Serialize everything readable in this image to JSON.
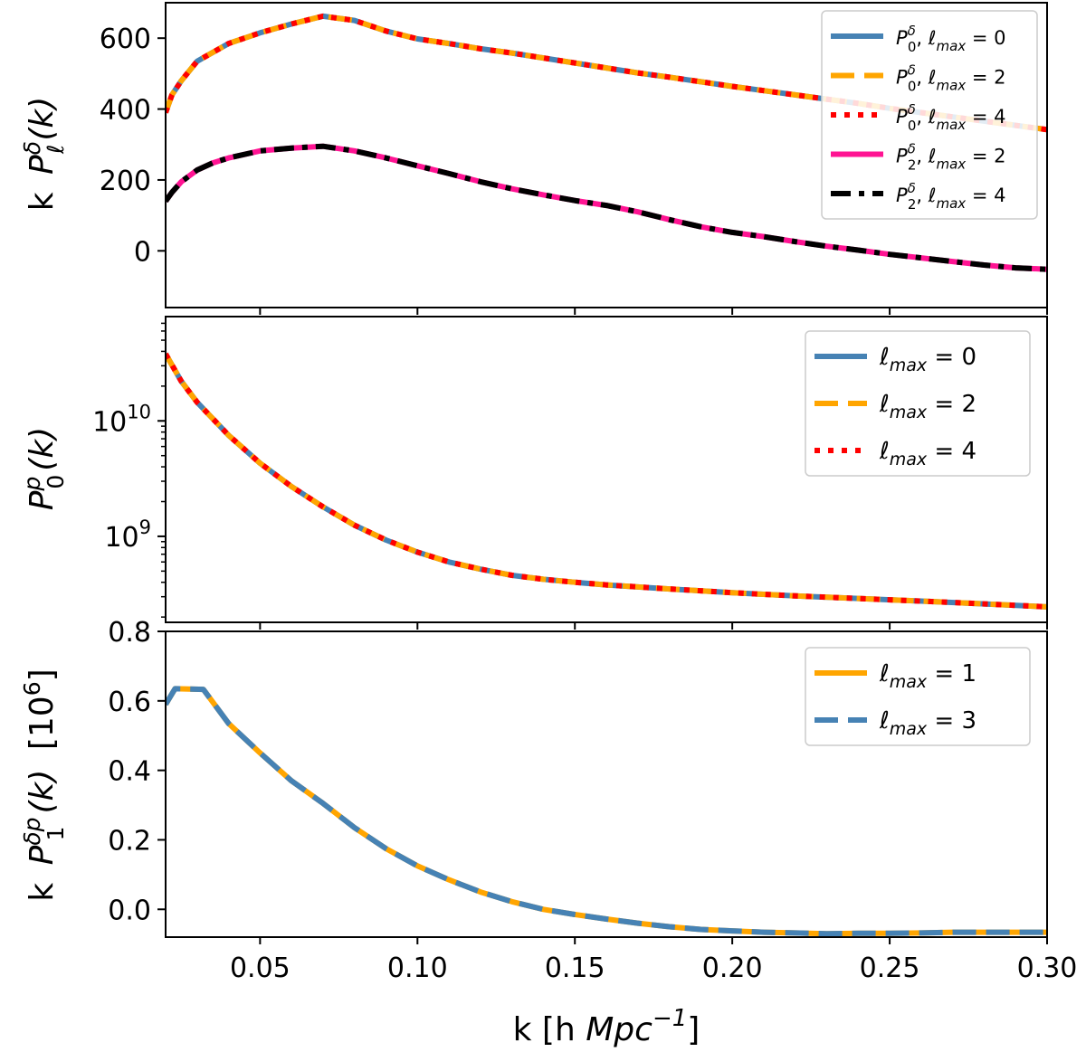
{
  "chart_data": [
    {
      "type": "line",
      "panel": "top",
      "ylabel": "k P_ℓ^δ(k)",
      "xlim": [
        0.02,
        0.3
      ],
      "ylim": [
        -160,
        700
      ],
      "yscale": "linear",
      "yticks": [
        {
          "value": 0,
          "label": "0"
        },
        {
          "value": 200,
          "label": "200"
        },
        {
          "value": 400,
          "label": "400"
        },
        {
          "value": 600,
          "label": "600"
        }
      ],
      "legend": {
        "placement": "upper-right"
      },
      "series": [
        {
          "name": "P_0^δ, ℓ_max = 0",
          "sub": "0",
          "lmax": "0",
          "color": "#4682b4",
          "style": "solid",
          "x": [
            0.02,
            0.022,
            0.025,
            0.03,
            0.035,
            0.04,
            0.05,
            0.06,
            0.07,
            0.08,
            0.09,
            0.1,
            0.11,
            0.12,
            0.13,
            0.14,
            0.15,
            0.16,
            0.17,
            0.18,
            0.19,
            0.2,
            0.21,
            0.22,
            0.23,
            0.24,
            0.25,
            0.26,
            0.27,
            0.28,
            0.29,
            0.3
          ],
          "y": [
            390,
            440,
            480,
            535,
            560,
            585,
            615,
            640,
            662,
            650,
            620,
            598,
            585,
            570,
            558,
            544,
            530,
            516,
            502,
            490,
            477,
            464,
            452,
            440,
            428,
            416,
            402,
            390,
            378,
            366,
            354,
            342
          ]
        },
        {
          "name": "P_0^δ, ℓ_max = 2",
          "sub": "0",
          "lmax": "2",
          "color": "#ffa500",
          "style": "dashed",
          "x": [
            0.02,
            0.022,
            0.025,
            0.03,
            0.035,
            0.04,
            0.05,
            0.06,
            0.07,
            0.08,
            0.09,
            0.1,
            0.11,
            0.12,
            0.13,
            0.14,
            0.15,
            0.16,
            0.17,
            0.18,
            0.19,
            0.2,
            0.21,
            0.22,
            0.23,
            0.24,
            0.25,
            0.26,
            0.27,
            0.28,
            0.29,
            0.3
          ],
          "y": [
            390,
            440,
            480,
            535,
            560,
            585,
            615,
            640,
            662,
            650,
            620,
            598,
            585,
            570,
            558,
            544,
            530,
            516,
            502,
            490,
            477,
            464,
            452,
            440,
            428,
            416,
            402,
            390,
            378,
            366,
            354,
            342
          ]
        },
        {
          "name": "P_0^δ, ℓ_max = 4",
          "sub": "0",
          "lmax": "4",
          "color": "#ff0000",
          "style": "dotted",
          "x": [
            0.02,
            0.022,
            0.025,
            0.03,
            0.035,
            0.04,
            0.05,
            0.06,
            0.07,
            0.08,
            0.09,
            0.1,
            0.11,
            0.12,
            0.13,
            0.14,
            0.15,
            0.16,
            0.17,
            0.18,
            0.19,
            0.2,
            0.21,
            0.22,
            0.23,
            0.24,
            0.25,
            0.26,
            0.27,
            0.28,
            0.29,
            0.3
          ],
          "y": [
            390,
            440,
            480,
            535,
            560,
            585,
            615,
            640,
            662,
            650,
            620,
            598,
            585,
            570,
            558,
            544,
            530,
            516,
            502,
            490,
            477,
            464,
            452,
            440,
            428,
            416,
            402,
            390,
            378,
            366,
            354,
            342
          ]
        },
        {
          "name": "P_2^δ, ℓ_max = 2",
          "sub": "2",
          "lmax": "2",
          "color": "#ff1493",
          "style": "solid",
          "x": [
            0.02,
            0.022,
            0.025,
            0.03,
            0.035,
            0.04,
            0.05,
            0.06,
            0.07,
            0.08,
            0.09,
            0.1,
            0.11,
            0.12,
            0.13,
            0.14,
            0.15,
            0.16,
            0.17,
            0.18,
            0.19,
            0.2,
            0.21,
            0.22,
            0.23,
            0.24,
            0.25,
            0.26,
            0.27,
            0.28,
            0.29,
            0.3
          ],
          "y": [
            140,
            165,
            195,
            228,
            248,
            262,
            282,
            290,
            295,
            282,
            262,
            240,
            218,
            195,
            175,
            158,
            142,
            128,
            110,
            88,
            68,
            52,
            40,
            26,
            13,
            2,
            -10,
            -20,
            -30,
            -40,
            -48,
            -52
          ]
        },
        {
          "name": "P_2^δ, ℓ_max = 4",
          "sub": "2",
          "lmax": "4",
          "color": "#000000",
          "style": "dashdot",
          "x": [
            0.02,
            0.022,
            0.025,
            0.03,
            0.035,
            0.04,
            0.05,
            0.06,
            0.07,
            0.08,
            0.09,
            0.1,
            0.11,
            0.12,
            0.13,
            0.14,
            0.15,
            0.16,
            0.17,
            0.18,
            0.19,
            0.2,
            0.21,
            0.22,
            0.23,
            0.24,
            0.25,
            0.26,
            0.27,
            0.28,
            0.29,
            0.3
          ],
          "y": [
            140,
            165,
            195,
            228,
            248,
            262,
            282,
            290,
            295,
            282,
            262,
            240,
            218,
            195,
            175,
            158,
            142,
            128,
            110,
            88,
            68,
            52,
            40,
            26,
            13,
            2,
            -10,
            -20,
            -30,
            -40,
            -48,
            -52
          ]
        }
      ]
    },
    {
      "type": "line",
      "panel": "middle",
      "ylabel": "P_0^p(k)",
      "xlim": [
        0.02,
        0.3
      ],
      "ylim": [
        180000000.0,
        80000000000.0
      ],
      "yscale": "log",
      "yticks": [
        {
          "value": 1000000000.0,
          "base": "10",
          "exp": "9"
        },
        {
          "value": 10000000000.0,
          "base": "10",
          "exp": "10"
        }
      ],
      "legend": {
        "placement": "upper-right"
      },
      "series": [
        {
          "name": "ℓ_max = 0",
          "lmax": "0",
          "color": "#4682b4",
          "style": "solid",
          "x": [
            0.02,
            0.025,
            0.03,
            0.04,
            0.05,
            0.06,
            0.07,
            0.08,
            0.09,
            0.1,
            0.11,
            0.12,
            0.13,
            0.14,
            0.15,
            0.16,
            0.18,
            0.2,
            0.22,
            0.24,
            0.26,
            0.28,
            0.3
          ],
          "y": [
            38000000000.0,
            22000000000.0,
            14500000000.0,
            7500000000.0,
            4300000000.0,
            2700000000.0,
            1800000000.0,
            1250000000.0,
            930000000.0,
            730000000.0,
            600000000.0,
            520000000.0,
            460000000.0,
            425000000.0,
            400000000.0,
            380000000.0,
            350000000.0,
            325000000.0,
            305000000.0,
            290000000.0,
            275000000.0,
            260000000.0,
            245000000.0
          ]
        },
        {
          "name": "ℓ_max = 2",
          "lmax": "2",
          "color": "#ffa500",
          "style": "dashed",
          "x": [
            0.02,
            0.025,
            0.03,
            0.04,
            0.05,
            0.06,
            0.07,
            0.08,
            0.09,
            0.1,
            0.11,
            0.12,
            0.13,
            0.14,
            0.15,
            0.16,
            0.18,
            0.2,
            0.22,
            0.24,
            0.26,
            0.28,
            0.3
          ],
          "y": [
            38000000000.0,
            22000000000.0,
            14500000000.0,
            7500000000.0,
            4300000000.0,
            2700000000.0,
            1800000000.0,
            1250000000.0,
            930000000.0,
            730000000.0,
            600000000.0,
            520000000.0,
            460000000.0,
            425000000.0,
            400000000.0,
            380000000.0,
            350000000.0,
            325000000.0,
            305000000.0,
            290000000.0,
            275000000.0,
            260000000.0,
            245000000.0
          ]
        },
        {
          "name": "ℓ_max = 4",
          "lmax": "4",
          "color": "#ff0000",
          "style": "dotted",
          "x": [
            0.02,
            0.025,
            0.03,
            0.04,
            0.05,
            0.06,
            0.07,
            0.08,
            0.09,
            0.1,
            0.11,
            0.12,
            0.13,
            0.14,
            0.15,
            0.16,
            0.18,
            0.2,
            0.22,
            0.24,
            0.26,
            0.28,
            0.3
          ],
          "y": [
            38000000000.0,
            22000000000.0,
            14500000000.0,
            7500000000.0,
            4300000000.0,
            2700000000.0,
            1800000000.0,
            1250000000.0,
            930000000.0,
            730000000.0,
            600000000.0,
            520000000.0,
            460000000.0,
            425000000.0,
            400000000.0,
            380000000.0,
            350000000.0,
            325000000.0,
            305000000.0,
            290000000.0,
            275000000.0,
            260000000.0,
            245000000.0
          ]
        }
      ]
    },
    {
      "type": "line",
      "panel": "bottom",
      "ylabel": "k P_1^δp(k) [10^6]",
      "xlabel": "k [h Mpc^-1]",
      "xlim": [
        0.02,
        0.3
      ],
      "ylim": [
        -0.08,
        0.8
      ],
      "yscale": "linear",
      "yticks": [
        {
          "value": 0.0,
          "label": "0.0"
        },
        {
          "value": 0.2,
          "label": "0.2"
        },
        {
          "value": 0.4,
          "label": "0.4"
        },
        {
          "value": 0.6,
          "label": "0.6"
        },
        {
          "value": 0.8,
          "label": "0.8"
        }
      ],
      "xticks": [
        {
          "value": 0.05,
          "label": "0.05"
        },
        {
          "value": 0.1,
          "label": "0.10"
        },
        {
          "value": 0.15,
          "label": "0.15"
        },
        {
          "value": 0.2,
          "label": "0.20"
        },
        {
          "value": 0.25,
          "label": "0.25"
        },
        {
          "value": 0.3,
          "label": "0.30"
        }
      ],
      "legend": {
        "placement": "upper-right"
      },
      "series": [
        {
          "name": "ℓ_max = 1",
          "lmax": "1",
          "color": "#ffa500",
          "style": "solid",
          "x": [
            0.02,
            0.023,
            0.032,
            0.04,
            0.05,
            0.06,
            0.07,
            0.08,
            0.09,
            0.1,
            0.11,
            0.12,
            0.13,
            0.14,
            0.15,
            0.16,
            0.17,
            0.18,
            0.19,
            0.2,
            0.21,
            0.22,
            0.23,
            0.24,
            0.25,
            0.26,
            0.27,
            0.28,
            0.29,
            0.3
          ],
          "y": [
            0.59,
            0.635,
            0.633,
            0.535,
            0.45,
            0.37,
            0.305,
            0.235,
            0.175,
            0.125,
            0.085,
            0.05,
            0.022,
            0.0,
            -0.015,
            -0.028,
            -0.04,
            -0.05,
            -0.058,
            -0.062,
            -0.066,
            -0.068,
            -0.07,
            -0.069,
            -0.069,
            -0.068,
            -0.066,
            -0.066,
            -0.066,
            -0.066
          ]
        },
        {
          "name": "ℓ_max = 3",
          "lmax": "3",
          "color": "#4682b4",
          "style": "dashed",
          "x": [
            0.02,
            0.023,
            0.032,
            0.04,
            0.05,
            0.06,
            0.07,
            0.08,
            0.09,
            0.1,
            0.11,
            0.12,
            0.13,
            0.14,
            0.15,
            0.16,
            0.17,
            0.18,
            0.19,
            0.2,
            0.21,
            0.22,
            0.23,
            0.24,
            0.25,
            0.26,
            0.27,
            0.28,
            0.29,
            0.3
          ],
          "y": [
            0.59,
            0.635,
            0.633,
            0.535,
            0.45,
            0.37,
            0.305,
            0.235,
            0.175,
            0.125,
            0.085,
            0.05,
            0.022,
            0.0,
            -0.015,
            -0.028,
            -0.04,
            -0.05,
            -0.058,
            -0.062,
            -0.066,
            -0.068,
            -0.07,
            -0.069,
            -0.069,
            -0.068,
            -0.066,
            -0.066,
            -0.066,
            -0.066
          ]
        }
      ]
    }
  ],
  "labels": {
    "top_ylabel": {
      "k": "k",
      "P": "P",
      "sup": "δ",
      "sub": "ℓ",
      "arg": "(k)"
    },
    "middle_ylabel": {
      "P": "P",
      "sup": "p",
      "sub": "0",
      "arg": "(k)"
    },
    "bottom_ylabel": {
      "k": "k",
      "P": "P",
      "sup": "δp",
      "sub": "1",
      "arg": "(k)",
      "scale": "[10",
      "scale_exp": "6",
      "scale_close": "]"
    },
    "xlabel": {
      "pre": "k [h ",
      "unit": "Mpc",
      "exp": "−1",
      "post": "]"
    }
  },
  "legend_text": {
    "P": "P",
    "delta": "δ",
    "lmax_l": "ℓ",
    "lmax_sub": "max",
    "eq": " = "
  }
}
